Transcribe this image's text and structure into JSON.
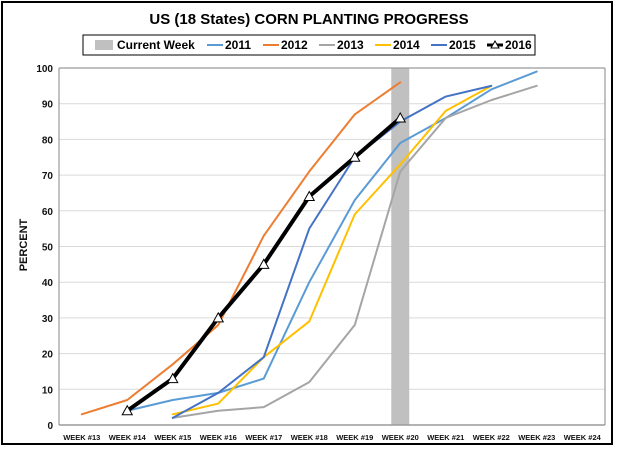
{
  "chart_data": {
    "type": "line",
    "title": "US (18 States) CORN PLANTING PROGRESS",
    "xlabel": "",
    "ylabel": "PERCENT",
    "ylim": [
      0,
      100
    ],
    "yticks": [
      0,
      10,
      20,
      30,
      40,
      50,
      60,
      70,
      80,
      90,
      100
    ],
    "grid": true,
    "legend_position": "top",
    "categories": [
      "WEEK #13",
      "WEEK #14",
      "WEEK #15",
      "WEEK #16",
      "WEEK #17",
      "WEEK #18",
      "WEEK #19",
      "WEEK #20",
      "WEEK #21",
      "WEEK #22",
      "WEEK #23",
      "WEEK #24"
    ],
    "current_week": {
      "label": "Current Week",
      "category": "WEEK #20",
      "color": "#c0c0c0"
    },
    "series": [
      {
        "name": "2011",
        "color": "#5b9bd5",
        "marker": "none",
        "values": [
          null,
          4,
          7,
          9,
          13,
          40,
          63,
          79,
          86,
          94,
          99,
          null
        ]
      },
      {
        "name": "2012",
        "color": "#ed7d31",
        "marker": "none",
        "values": [
          3,
          7,
          17,
          28,
          53,
          71,
          87,
          96,
          null,
          null,
          null,
          null
        ]
      },
      {
        "name": "2013",
        "color": "#a5a5a5",
        "marker": "none",
        "values": [
          null,
          null,
          2,
          4,
          5,
          12,
          28,
          71,
          86,
          91,
          95,
          null
        ]
      },
      {
        "name": "2014",
        "color": "#ffc000",
        "marker": "none",
        "values": [
          null,
          null,
          3,
          6,
          19,
          29,
          59,
          73,
          88,
          95,
          null,
          null
        ]
      },
      {
        "name": "2015",
        "color": "#4472c4",
        "marker": "none",
        "values": [
          null,
          null,
          2,
          9,
          19,
          55,
          75,
          85,
          92,
          95,
          null,
          null
        ]
      },
      {
        "name": "2016",
        "color": "#000000",
        "marker": "triangle",
        "values": [
          null,
          4,
          13,
          30,
          45,
          64,
          75,
          86,
          null,
          null,
          null,
          null
        ]
      }
    ]
  }
}
